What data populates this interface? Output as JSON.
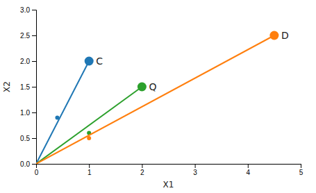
{
  "chart_data": {
    "type": "line",
    "xlabel": "X1",
    "ylabel": "X2",
    "xlim": [
      0,
      5
    ],
    "ylim": [
      0,
      3.0
    ],
    "xticks": [
      0,
      1,
      2,
      3,
      4,
      5
    ],
    "yticks": [
      {
        "value": 0.0,
        "label": "0.0"
      },
      0.5,
      {
        "value": 1.0,
        "label": "1.0"
      },
      1.5,
      {
        "value": 2.0,
        "label": "2.0"
      },
      2.5,
      {
        "value": 3.0,
        "label": "3.0"
      }
    ],
    "series": [
      {
        "name": "C",
        "type": "line",
        "color": "#1f77b4",
        "x": [
          0,
          1.0
        ],
        "values": [
          0,
          2.0
        ],
        "intermediate": {
          "x": 0.4,
          "y": 0.9
        }
      },
      {
        "name": "Q",
        "type": "line",
        "color": "#2ca02c",
        "x": [
          0,
          2.0
        ],
        "values": [
          0,
          1.5
        ],
        "intermediate": {
          "x": 1.0,
          "y": 0.6
        }
      },
      {
        "name": "D",
        "type": "line",
        "color": "#ff7f0e",
        "x": [
          0,
          4.5
        ],
        "values": [
          0,
          2.5
        ],
        "intermediate": {
          "x": 1.0,
          "y": 0.5
        }
      }
    ]
  }
}
